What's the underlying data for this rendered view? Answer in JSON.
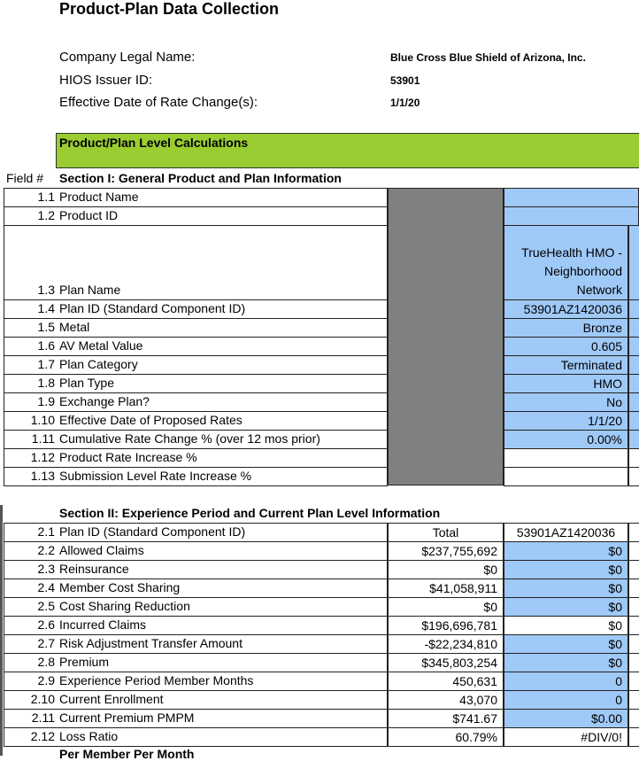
{
  "title": "Product-Plan Data Collection",
  "company": [
    {
      "label": "Company Legal Name:",
      "value": "Blue Cross Blue Shield of Arizona, Inc."
    },
    {
      "label": "HIOS Issuer ID:",
      "value": "53901"
    },
    {
      "label": "Effective Date of Rate Change(s):",
      "value": "1/1/20"
    }
  ],
  "banner": "Product/Plan Level Calculations",
  "field_header": "Field #",
  "section1": {
    "title": "Section I: General Product and Plan Information",
    "rows": [
      {
        "num": "1.1",
        "label": "Product Name",
        "value": "",
        "blue": true
      },
      {
        "num": "1.2",
        "label": "Product ID",
        "value": "",
        "blue": true
      },
      {
        "num": "1.3",
        "label": "Plan Name",
        "value": "TrueHealth HMO - Neighborhood Network",
        "blue": true,
        "tall": true
      },
      {
        "num": "1.4",
        "label": "Plan ID (Standard Component ID)",
        "value": "53901AZ1420036",
        "blue": true
      },
      {
        "num": "1.5",
        "label": "Metal",
        "value": "Bronze",
        "blue": true
      },
      {
        "num": "1.6",
        "label": "AV Metal Value",
        "value": "0.605",
        "blue": true
      },
      {
        "num": "1.7",
        "label": "Plan Category",
        "value": "Terminated",
        "blue": true
      },
      {
        "num": "1.8",
        "label": "Plan Type",
        "value": "HMO",
        "blue": true
      },
      {
        "num": "1.9",
        "label": "Exchange Plan?",
        "value": "No",
        "blue": true
      },
      {
        "num": "1.10",
        "label": "Effective Date of Proposed Rates",
        "value": "1/1/20",
        "blue": true
      },
      {
        "num": "1.11",
        "label": "Cumulative Rate Change %  (over 12 mos prior)",
        "value": "0.00%",
        "blue": true
      },
      {
        "num": "1.12",
        "label": "Product Rate Increase %",
        "value": "",
        "blue": false
      },
      {
        "num": "1.13",
        "label": "Submission Level Rate Increase %",
        "value": "",
        "blue": false
      }
    ]
  },
  "section2": {
    "title": "Section II: Experience Period and Current Plan Level Information",
    "rows": [
      {
        "num": "2.1",
        "label": "Plan ID (Standard Component ID)",
        "total": "Total",
        "value": "53901AZ1420036",
        "blue": false,
        "center": true
      },
      {
        "num": "2.2",
        "label": "Allowed Claims",
        "total": "$237,755,692",
        "value": "$0",
        "blue": true
      },
      {
        "num": "2.3",
        "label": "Reinsurance",
        "total": "$0",
        "value": "$0",
        "blue": true
      },
      {
        "num": "2.4",
        "label": "Member Cost Sharing",
        "total": "$41,058,911",
        "value": "$0",
        "blue": true
      },
      {
        "num": "2.5",
        "label": "Cost Sharing Reduction",
        "total": "$0",
        "value": "$0",
        "blue": true
      },
      {
        "num": "2.6",
        "label": "Incurred Claims",
        "total": "$196,696,781",
        "value": "$0",
        "blue": false
      },
      {
        "num": "2.7",
        "label": "Risk Adjustment Transfer Amount",
        "total": "-$22,234,810",
        "value": "$0",
        "blue": true
      },
      {
        "num": "2.8",
        "label": "Premium",
        "total": "$345,803,254",
        "value": "$0",
        "blue": true
      },
      {
        "num": "2.9",
        "label": "Experience Period Member Months",
        "total": "450,631",
        "value": "0",
        "blue": true
      },
      {
        "num": "2.10",
        "label": "Current Enrollment",
        "total": "43,070",
        "value": "0",
        "blue": true
      },
      {
        "num": "2.11",
        "label": "Current Premium PMPM",
        "total": "$741.67",
        "value": "$0.00",
        "blue": true
      },
      {
        "num": "2.12",
        "label": "Loss Ratio",
        "total": "60.79%",
        "value": "#DIV/0!",
        "blue": false
      }
    ]
  },
  "next_section": "Per Member Per Month",
  "colors": {
    "green": "#9acd32",
    "blue": "#9fc9f7",
    "gray": "#808080"
  }
}
